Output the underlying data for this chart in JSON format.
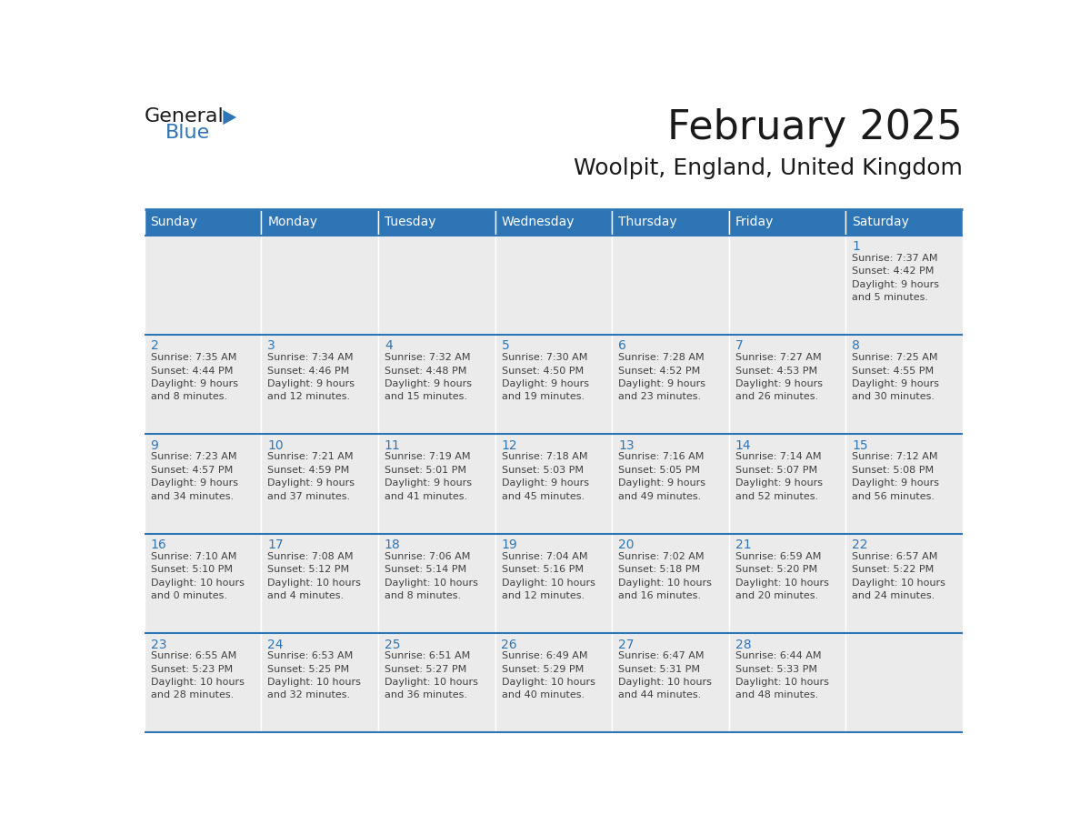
{
  "title": "February 2025",
  "subtitle": "Woolpit, England, United Kingdom",
  "header_bg": "#2e75b6",
  "header_text_color": "#ffffff",
  "cell_bg": "#ebebeb",
  "day_number_color": "#2e75b6",
  "text_color": "#404040",
  "line_color": "#2e75b6",
  "border_color": "#2e75b6",
  "days_of_week": [
    "Sunday",
    "Monday",
    "Tuesday",
    "Wednesday",
    "Thursday",
    "Friday",
    "Saturday"
  ],
  "weeks": [
    [
      null,
      null,
      null,
      null,
      null,
      null,
      {
        "day": "1",
        "info": "Sunrise: 7:37 AM\nSunset: 4:42 PM\nDaylight: 9 hours\nand 5 minutes."
      }
    ],
    [
      {
        "day": "2",
        "info": "Sunrise: 7:35 AM\nSunset: 4:44 PM\nDaylight: 9 hours\nand 8 minutes."
      },
      {
        "day": "3",
        "info": "Sunrise: 7:34 AM\nSunset: 4:46 PM\nDaylight: 9 hours\nand 12 minutes."
      },
      {
        "day": "4",
        "info": "Sunrise: 7:32 AM\nSunset: 4:48 PM\nDaylight: 9 hours\nand 15 minutes."
      },
      {
        "day": "5",
        "info": "Sunrise: 7:30 AM\nSunset: 4:50 PM\nDaylight: 9 hours\nand 19 minutes."
      },
      {
        "day": "6",
        "info": "Sunrise: 7:28 AM\nSunset: 4:52 PM\nDaylight: 9 hours\nand 23 minutes."
      },
      {
        "day": "7",
        "info": "Sunrise: 7:27 AM\nSunset: 4:53 PM\nDaylight: 9 hours\nand 26 minutes."
      },
      {
        "day": "8",
        "info": "Sunrise: 7:25 AM\nSunset: 4:55 PM\nDaylight: 9 hours\nand 30 minutes."
      }
    ],
    [
      {
        "day": "9",
        "info": "Sunrise: 7:23 AM\nSunset: 4:57 PM\nDaylight: 9 hours\nand 34 minutes."
      },
      {
        "day": "10",
        "info": "Sunrise: 7:21 AM\nSunset: 4:59 PM\nDaylight: 9 hours\nand 37 minutes."
      },
      {
        "day": "11",
        "info": "Sunrise: 7:19 AM\nSunset: 5:01 PM\nDaylight: 9 hours\nand 41 minutes."
      },
      {
        "day": "12",
        "info": "Sunrise: 7:18 AM\nSunset: 5:03 PM\nDaylight: 9 hours\nand 45 minutes."
      },
      {
        "day": "13",
        "info": "Sunrise: 7:16 AM\nSunset: 5:05 PM\nDaylight: 9 hours\nand 49 minutes."
      },
      {
        "day": "14",
        "info": "Sunrise: 7:14 AM\nSunset: 5:07 PM\nDaylight: 9 hours\nand 52 minutes."
      },
      {
        "day": "15",
        "info": "Sunrise: 7:12 AM\nSunset: 5:08 PM\nDaylight: 9 hours\nand 56 minutes."
      }
    ],
    [
      {
        "day": "16",
        "info": "Sunrise: 7:10 AM\nSunset: 5:10 PM\nDaylight: 10 hours\nand 0 minutes."
      },
      {
        "day": "17",
        "info": "Sunrise: 7:08 AM\nSunset: 5:12 PM\nDaylight: 10 hours\nand 4 minutes."
      },
      {
        "day": "18",
        "info": "Sunrise: 7:06 AM\nSunset: 5:14 PM\nDaylight: 10 hours\nand 8 minutes."
      },
      {
        "day": "19",
        "info": "Sunrise: 7:04 AM\nSunset: 5:16 PM\nDaylight: 10 hours\nand 12 minutes."
      },
      {
        "day": "20",
        "info": "Sunrise: 7:02 AM\nSunset: 5:18 PM\nDaylight: 10 hours\nand 16 minutes."
      },
      {
        "day": "21",
        "info": "Sunrise: 6:59 AM\nSunset: 5:20 PM\nDaylight: 10 hours\nand 20 minutes."
      },
      {
        "day": "22",
        "info": "Sunrise: 6:57 AM\nSunset: 5:22 PM\nDaylight: 10 hours\nand 24 minutes."
      }
    ],
    [
      {
        "day": "23",
        "info": "Sunrise: 6:55 AM\nSunset: 5:23 PM\nDaylight: 10 hours\nand 28 minutes."
      },
      {
        "day": "24",
        "info": "Sunrise: 6:53 AM\nSunset: 5:25 PM\nDaylight: 10 hours\nand 32 minutes."
      },
      {
        "day": "25",
        "info": "Sunrise: 6:51 AM\nSunset: 5:27 PM\nDaylight: 10 hours\nand 36 minutes."
      },
      {
        "day": "26",
        "info": "Sunrise: 6:49 AM\nSunset: 5:29 PM\nDaylight: 10 hours\nand 40 minutes."
      },
      {
        "day": "27",
        "info": "Sunrise: 6:47 AM\nSunset: 5:31 PM\nDaylight: 10 hours\nand 44 minutes."
      },
      {
        "day": "28",
        "info": "Sunrise: 6:44 AM\nSunset: 5:33 PM\nDaylight: 10 hours\nand 48 minutes."
      },
      null
    ]
  ],
  "logo_general_color": "#1a1a1a",
  "logo_blue_color": "#2e75b6",
  "title_fontsize": 32,
  "subtitle_fontsize": 18,
  "header_fontsize": 10,
  "day_number_fontsize": 10,
  "info_fontsize": 8,
  "logo_fontsize": 16
}
